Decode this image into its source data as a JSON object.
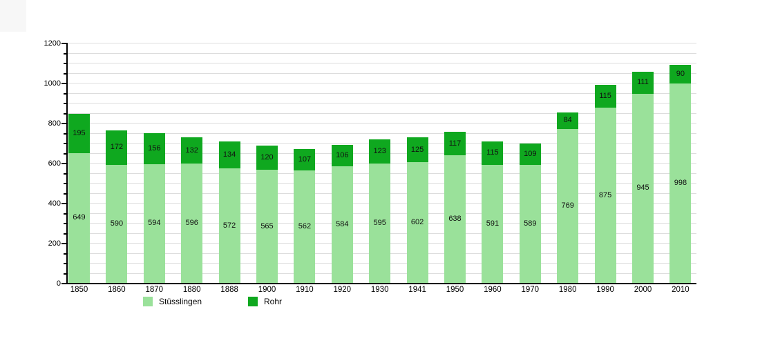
{
  "chart_data": {
    "type": "bar",
    "stacked": true,
    "title": "",
    "xlabel": "",
    "ylabel": "",
    "categories": [
      "1850",
      "1860",
      "1870",
      "1880",
      "1888",
      "1900",
      "1910",
      "1920",
      "1930",
      "1941",
      "1950",
      "1960",
      "1970",
      "1980",
      "1990",
      "2000",
      "2010"
    ],
    "series": [
      {
        "name": "Stüsslingen",
        "color": "#9ae19a",
        "values": [
          649,
          590,
          594,
          596,
          572,
          565,
          562,
          584,
          595,
          602,
          638,
          591,
          589,
          769,
          875,
          945,
          998
        ]
      },
      {
        "name": "Rohr",
        "color": "#0fa81f",
        "values": [
          195,
          172,
          156,
          132,
          134,
          120,
          107,
          106,
          123,
          125,
          117,
          115,
          109,
          84,
          115,
          111,
          90
        ]
      }
    ],
    "stack_totals": [
      844,
      762,
      750,
      728,
      706,
      685,
      669,
      690,
      718,
      727,
      755,
      706,
      698,
      853,
      990,
      1056,
      1088
    ],
    "ylim": [
      0,
      1200
    ],
    "y_ticks": [
      "0",
      "200",
      "400",
      "600",
      "800",
      "1000",
      "1200"
    ],
    "minor_grid_step": 50,
    "grid": true,
    "data_labels": true,
    "legend_position": "bottom"
  },
  "colors": {
    "grid": "#dddddd",
    "axis": "#000000",
    "value_text": "#111111"
  }
}
